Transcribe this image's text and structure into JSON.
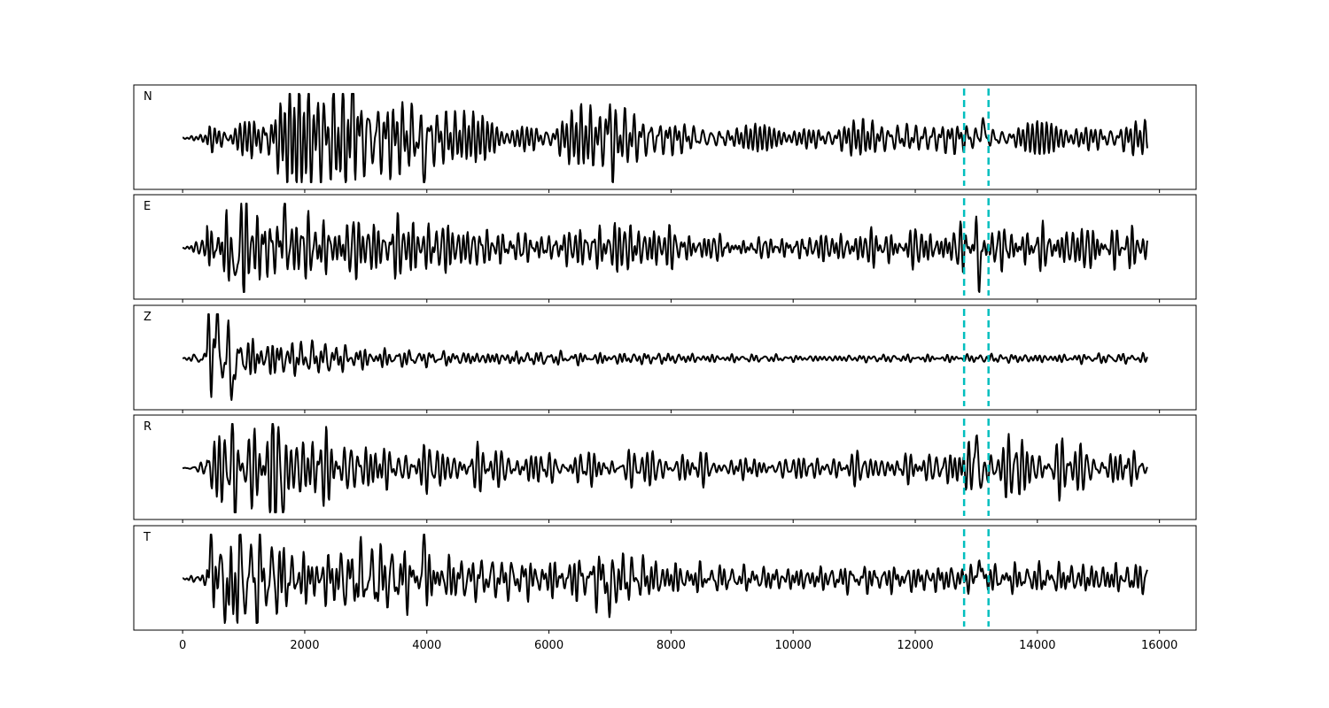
{
  "chart_data": {
    "type": "line",
    "title": "",
    "xlabel": "",
    "ylabel": "",
    "xlim": [
      -800,
      16600
    ],
    "x_ticks": [
      0,
      2000,
      4000,
      6000,
      8000,
      10000,
      12000,
      14000,
      16000
    ],
    "x_tick_labels": [
      "0",
      "2000",
      "4000",
      "6000",
      "8000",
      "10000",
      "12000",
      "14000",
      "16000"
    ],
    "sample_range": [
      0,
      15800
    ],
    "ylim": [
      -1,
      1
    ],
    "shared_x": true,
    "grid": false,
    "legend": "none",
    "trace_color": "#000000",
    "marker_color": "#00bfbf",
    "vertical_markers": [
      12800,
      13200
    ],
    "panels": [
      {
        "label": "N",
        "envelope": [
          [
            0,
            0.05
          ],
          [
            500,
            0.55
          ],
          [
            900,
            0.85
          ],
          [
            2800,
            0.95
          ],
          [
            3500,
            0.6
          ],
          [
            4000,
            0.75
          ],
          [
            6000,
            0.35
          ],
          [
            7000,
            0.55
          ],
          [
            8000,
            0.3
          ],
          [
            12000,
            0.25
          ],
          [
            13000,
            0.35
          ],
          [
            15800,
            0.25
          ]
        ],
        "spikes": [
          {
            "x": 2800,
            "a": 0.95
          },
          {
            "x": 3950,
            "a": -0.75
          },
          {
            "x": 7000,
            "a": 0.62
          },
          {
            "x": 7050,
            "a": -0.55
          },
          {
            "x": 13100,
            "a": 0.45
          }
        ]
      },
      {
        "label": "E",
        "envelope": [
          [
            0,
            0.05
          ],
          [
            500,
            0.6
          ],
          [
            850,
            0.9
          ],
          [
            1700,
            0.8
          ],
          [
            2500,
            0.55
          ],
          [
            4000,
            0.45
          ],
          [
            6000,
            0.3
          ],
          [
            7000,
            0.45
          ],
          [
            9000,
            0.2
          ],
          [
            12000,
            0.3
          ],
          [
            13000,
            0.45
          ],
          [
            15800,
            0.3
          ]
        ],
        "spikes": [
          {
            "x": 850,
            "a": -0.95
          },
          {
            "x": 1650,
            "a": 0.75
          },
          {
            "x": 13000,
            "a": 0.45
          },
          {
            "x": 13050,
            "a": -0.85
          }
        ]
      },
      {
        "label": "Z",
        "envelope": [
          [
            0,
            0.03
          ],
          [
            400,
            0.5
          ],
          [
            600,
            0.7
          ],
          [
            1000,
            0.45
          ],
          [
            2000,
            0.3
          ],
          [
            4000,
            0.12
          ],
          [
            7000,
            0.1
          ],
          [
            10000,
            0.05
          ],
          [
            15800,
            0.08
          ]
        ],
        "spikes": [
          {
            "x": 430,
            "a": 0.8
          },
          {
            "x": 570,
            "a": 0.9
          },
          {
            "x": 820,
            "a": -0.8
          }
        ]
      },
      {
        "label": "R",
        "envelope": [
          [
            0,
            0.05
          ],
          [
            500,
            0.55
          ],
          [
            900,
            0.85
          ],
          [
            1700,
            0.8
          ],
          [
            3000,
            0.5
          ],
          [
            4000,
            0.35
          ],
          [
            7000,
            0.3
          ],
          [
            10000,
            0.2
          ],
          [
            12000,
            0.25
          ],
          [
            13000,
            0.55
          ],
          [
            15800,
            0.3
          ]
        ],
        "spikes": [
          {
            "x": 820,
            "a": 0.8
          },
          {
            "x": 850,
            "a": -0.75
          },
          {
            "x": 1650,
            "a": -0.8
          },
          {
            "x": 13000,
            "a": 0.65
          },
          {
            "x": 13100,
            "a": -0.4
          }
        ]
      },
      {
        "label": "T",
        "envelope": [
          [
            0,
            0.05
          ],
          [
            500,
            0.75
          ],
          [
            800,
            0.95
          ],
          [
            2000,
            0.6
          ],
          [
            4000,
            0.6
          ],
          [
            5000,
            0.35
          ],
          [
            7000,
            0.55
          ],
          [
            9000,
            0.25
          ],
          [
            12000,
            0.3
          ],
          [
            15800,
            0.35
          ]
        ],
        "spikes": [
          {
            "x": 480,
            "a": 0.75
          },
          {
            "x": 760,
            "a": -0.9
          },
          {
            "x": 3950,
            "a": 0.8
          },
          {
            "x": 7000,
            "a": -0.7
          },
          {
            "x": 13050,
            "a": 0.6
          }
        ]
      }
    ]
  }
}
